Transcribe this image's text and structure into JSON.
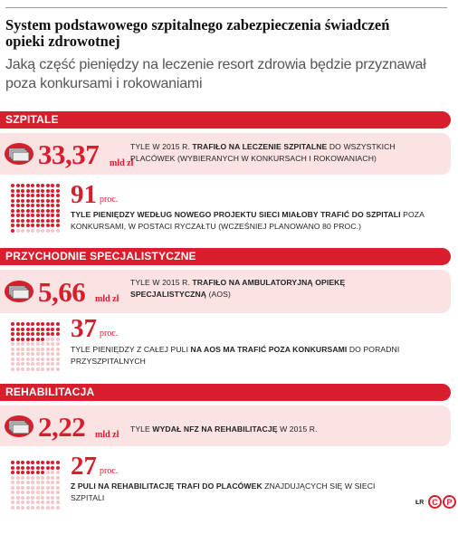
{
  "header": {
    "title": "System podstawowego szpitalnego zabezpieczenia świadczeń opieki zdrowotnej",
    "subtitle": "Jaką część pieniędzy na leczenie resort zdrowia będzie przyznawał poza konkursami i rokowaniami"
  },
  "sections": [
    {
      "label": "SZPITALE",
      "amount": "33,37",
      "amount_unit": "mld zł",
      "amount_desc_pre": "TYLE W 2015 R. ",
      "amount_desc_bold": "TRAFIŁO NA LECZENIE SZPITALNE",
      "amount_desc_post": " DO WSZYSTKICH PLACÓWEK (WYBIERANYCH W KONKURSACH I ROKOWANIACH)",
      "percent": "91",
      "percent_value": 91,
      "percent_unit": "proc.",
      "percent_desc_bold": "TYLE PIENIĘDZY WEDŁUG NOWEGO PROJEKTU SIECI MIAŁOBY TRAFIĆ DO SZPITALI",
      "percent_desc_post": " POZA KONKURSAMI, W POSTACI RYCZAŁTU (WCZEŚNIEJ PLANOWANO 80 PROC.)"
    },
    {
      "label": "PRZYCHODNIE SPECJALISTYCZNE",
      "amount": "5,66",
      "amount_unit": "mld zł",
      "amount_desc_pre": "TYLE W 2015 R. ",
      "amount_desc_bold": "TRAFIŁO NA AMBULATORYJNĄ OPIEKĘ SPECJALISTYCZNĄ",
      "amount_desc_post": " (AOS)",
      "percent": "37",
      "percent_value": 37,
      "percent_unit": "proc.",
      "percent_desc_pre": "TYLE PIENIĘDZY Z CAŁEJ PULI ",
      "percent_desc_bold": "NA AOS MA TRAFIĆ POZA KONKURSAMI",
      "percent_desc_post": " DO PORADNI PRZYSZPITALNYCH"
    },
    {
      "label": "REHABILITACJA",
      "amount": "2,22",
      "amount_unit": "mld zł",
      "amount_desc_pre": "TYLE ",
      "amount_desc_bold": "WYDAŁ NFZ NA REHABILITACJĘ",
      "amount_desc_post": " W 2015 R.",
      "percent": "27",
      "percent_value": 27,
      "percent_unit": "proc.",
      "percent_desc_bold": "Z PULI NA REHABILITACJĘ TRAFI DO PLACÓWEK",
      "percent_desc_post": " ZNAJDUJĄCYCH SIĘ W SIECI SZPITALI"
    }
  ],
  "footer": {
    "credit": "ŁR",
    "license_icon_1": "C",
    "license_icon_2": "P"
  },
  "colors": {
    "accent": "#d81e2c",
    "band": "#fbe3e4",
    "dot_off": "#f3c6c9"
  }
}
